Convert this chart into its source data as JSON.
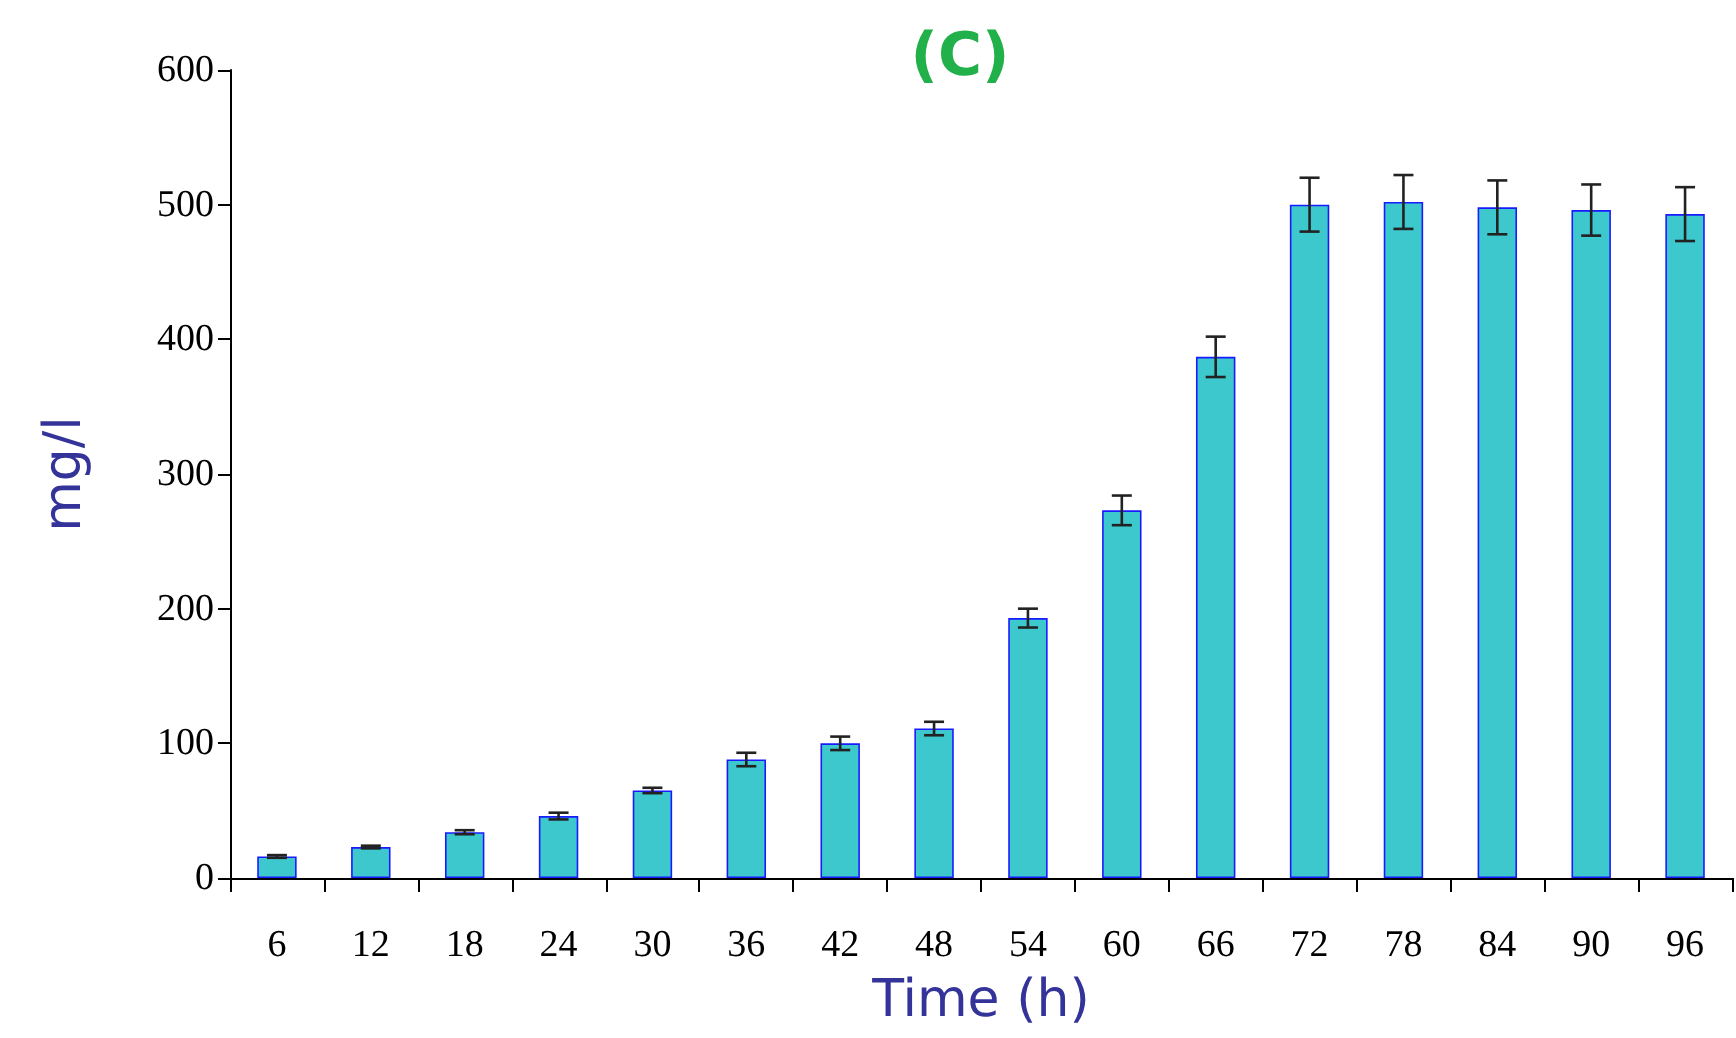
{
  "chart_data": {
    "type": "bar",
    "title": "(C)",
    "xlabel": "Time (h)",
    "ylabel": "mg/l",
    "categories": [
      "6",
      "12",
      "18",
      "24",
      "30",
      "36",
      "42",
      "48",
      "54",
      "60",
      "66",
      "72",
      "78",
      "84",
      "90",
      "96"
    ],
    "values": [
      16,
      23,
      34,
      46,
      65,
      88,
      100,
      111,
      193,
      273,
      387,
      500,
      502,
      498,
      496,
      493
    ],
    "errors": [
      1,
      1,
      1.5,
      2.5,
      2,
      5,
      5,
      5,
      7,
      11,
      15,
      20,
      20,
      20,
      19,
      20
    ],
    "color": "#3cc8cc",
    "ylim": [
      0,
      600
    ],
    "yticks": [
      0,
      100,
      200,
      300,
      400,
      500,
      600
    ],
    "grid": false
  }
}
